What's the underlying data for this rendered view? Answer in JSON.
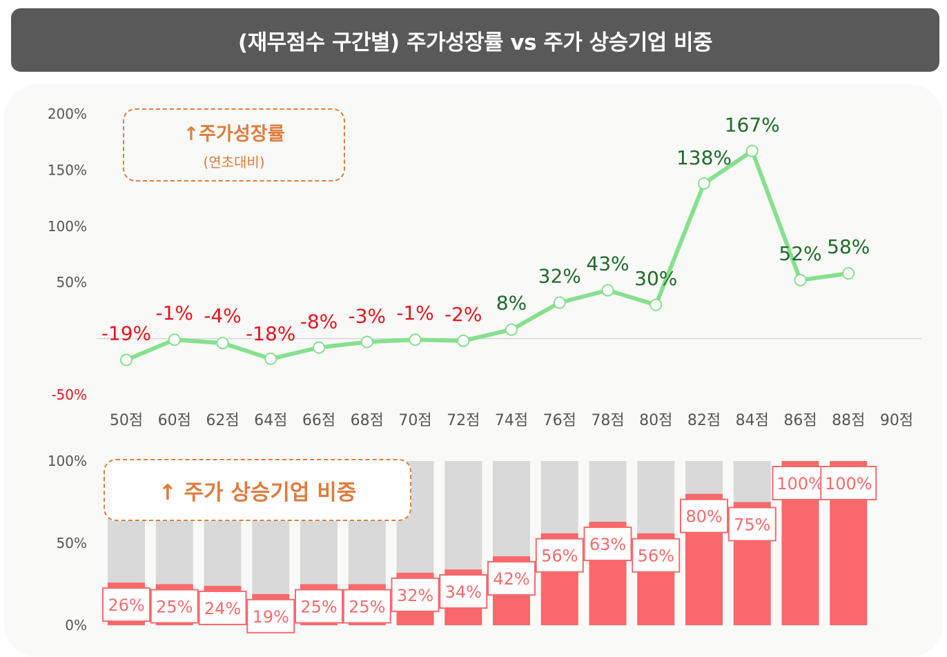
{
  "title": "(재무점수 구간별)  주가성장률 vs 주가 상승기업 비중",
  "colors": {
    "title_bg": "#595959",
    "line": "#86e08f",
    "positive_label": "#1e6b2a",
    "negative_label": "#e8141c",
    "bar_fill": "#f8696b",
    "bar_bg": "#d9d9d9",
    "legend": "#e07b3c",
    "axis_text": "#555555"
  },
  "chart_data": [
    {
      "type": "line",
      "title": "주가성장률",
      "legend": {
        "icon": "arrow-up-icon",
        "arrow": "↑",
        "label": "주가성장률",
        "sub_label": "(연초대비)",
        "placement": "top-left"
      },
      "categories": [
        "50점",
        "60점",
        "62점",
        "64점",
        "66점",
        "68점",
        "70점",
        "72점",
        "74점",
        "76점",
        "78점",
        "80점",
        "82점",
        "84점",
        "86점",
        "88점",
        "90점"
      ],
      "values": [
        -19,
        -1,
        -4,
        -18,
        -8,
        -3,
        -1,
        -2,
        8,
        32,
        43,
        30,
        138,
        167,
        52,
        58,
        null
      ],
      "data_labels": [
        "-19%",
        "-1%",
        "-4%",
        "-18%",
        "-8%",
        "-3%",
        "-1%",
        "-2%",
        "8%",
        "32%",
        "43%",
        "30%",
        "138%",
        "167%",
        "52%",
        "58%",
        ""
      ],
      "ylim": [
        -50,
        200
      ],
      "yticks": [
        {
          "value": 200,
          "label": "200%"
        },
        {
          "value": 150,
          "label": "150%"
        },
        {
          "value": 100,
          "label": "100%"
        },
        {
          "value": 50,
          "label": "50%"
        },
        {
          "value": -50,
          "label": "-50%"
        }
      ],
      "grid": false,
      "zero_line": true,
      "xlabel": "",
      "ylabel": ""
    },
    {
      "type": "bar",
      "title": "주가 상승기업 비중",
      "legend": {
        "icon": "arrow-up-icon",
        "arrow": "↑",
        "label": "주가 상승기업 비중",
        "placement": "top-left"
      },
      "categories": [
        "50점",
        "60점",
        "62점",
        "64점",
        "66점",
        "68점",
        "70점",
        "72점",
        "74점",
        "76점",
        "78점",
        "80점",
        "82점",
        "84점",
        "86점",
        "88점",
        "90점"
      ],
      "values": [
        26,
        25,
        24,
        19,
        25,
        25,
        32,
        34,
        42,
        56,
        63,
        56,
        80,
        75,
        100,
        100,
        null
      ],
      "data_labels": [
        "26%",
        "25%",
        "24%",
        "19%",
        "25%",
        "25%",
        "32%",
        "34%",
        "42%",
        "56%",
        "63%",
        "56%",
        "80%",
        "75%",
        "100%",
        "100%",
        ""
      ],
      "ylim": [
        0,
        100
      ],
      "yticks": [
        {
          "value": 100,
          "label": "100%"
        },
        {
          "value": 50,
          "label": "50%"
        },
        {
          "value": 0,
          "label": "0%"
        }
      ],
      "stacked_background": true,
      "grid": false,
      "xlabel": "",
      "ylabel": ""
    }
  ]
}
